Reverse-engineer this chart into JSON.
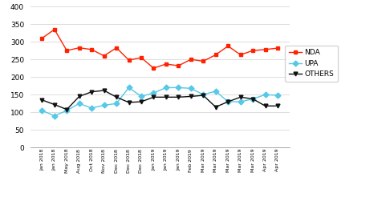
{
  "x_labels": [
    "Jan 2018",
    "Jan 2018",
    "May 2018",
    "Aug 2018",
    "Oct 2018",
    "Nov 2018",
    "Dec 2018",
    "Dec 2018",
    "Dec 2018",
    "Jan 2019",
    "Jan 2019",
    "Jan 2019",
    "Feb 2019",
    "Mar 2019",
    "Mar 2019",
    "Mar 2019",
    "Mar 2019",
    "Mar 2019",
    "Apr 2019",
    "Apr 2019"
  ],
  "NDA": [
    310,
    335,
    275,
    283,
    278,
    260,
    283,
    248,
    255,
    225,
    237,
    232,
    250,
    245,
    263,
    288,
    263,
    275,
    278,
    282
  ],
  "UPA": [
    105,
    90,
    105,
    125,
    112,
    120,
    125,
    170,
    145,
    155,
    170,
    170,
    168,
    150,
    160,
    130,
    130,
    138,
    150,
    148
  ],
  "OTHERS": [
    135,
    122,
    108,
    145,
    158,
    162,
    143,
    128,
    130,
    143,
    143,
    143,
    145,
    148,
    115,
    130,
    143,
    138,
    118,
    118
  ],
  "nda_color": "#FF2200",
  "upa_color": "#56C8E8",
  "others_color": "#111111",
  "ylim": [
    0,
    400
  ],
  "yticks": [
    0,
    50,
    100,
    150,
    200,
    250,
    300,
    350,
    400
  ],
  "background_color": "#ffffff",
  "figwidth": 4.71,
  "figheight": 2.71,
  "dpi": 100
}
